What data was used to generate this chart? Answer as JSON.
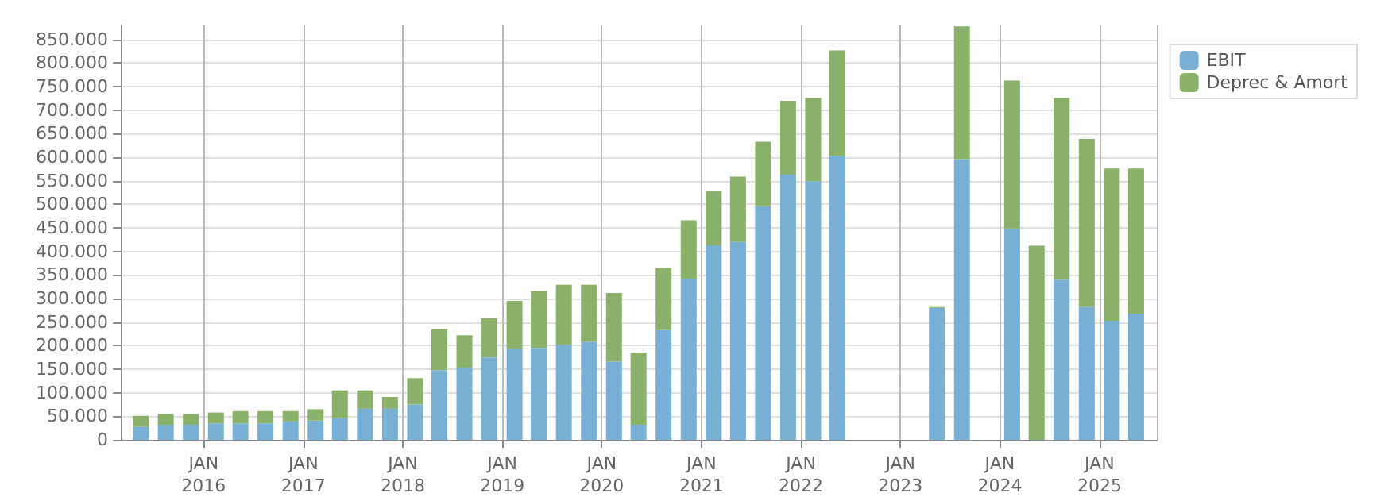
{
  "chart_data": {
    "type": "bar",
    "stacked": true,
    "grid": true,
    "legend": "top right",
    "x": [
      "2015-05-15",
      "2015-08-15",
      "2015-11-15",
      "2016-02-15",
      "2016-05-15",
      "2016-08-15",
      "2016-11-15",
      "2017-02-15",
      "2017-05-15",
      "2017-08-15",
      "2017-11-15",
      "2018-02-15",
      "2018-05-15",
      "2018-08-15",
      "2018-11-15",
      "2019-02-15",
      "2019-05-15",
      "2019-08-15",
      "2019-11-15",
      "2020-02-15",
      "2020-05-15",
      "2020-08-15",
      "2020-11-15",
      "2021-02-15",
      "2021-05-15",
      "2021-08-15",
      "2021-11-15",
      "2022-02-15",
      "2022-05-15",
      "2023-05-15",
      "2023-08-15",
      "2024-02-15",
      "2024-05-15",
      "2024-08-15",
      "2024-11-15",
      "2025-02-15",
      "2025-05-15"
    ],
    "series": [
      {
        "name": "EBIT",
        "color": "#77b0d4",
        "values": [
          28000,
          32000,
          32000,
          35000,
          35000,
          35000,
          39000,
          41000,
          46000,
          66000,
          66000,
          75000,
          148000,
          153000,
          175000,
          193000,
          195000,
          202000,
          208000,
          166000,
          32000,
          233000,
          342000,
          413000,
          420000,
          496000,
          563000,
          549000,
          603000,
          280000,
          596000,
          449000,
          null,
          340000,
          282000,
          253000,
          268000
        ]
      },
      {
        "name": "Deprec & Amort",
        "color": "#8ab06a",
        "values": [
          23000,
          23000,
          23000,
          23000,
          26000,
          26000,
          22000,
          24000,
          59000,
          39000,
          25000,
          56000,
          87000,
          69000,
          83000,
          102000,
          121000,
          127000,
          121000,
          146000,
          153000,
          132000,
          124000,
          116000,
          139000,
          137000,
          157000,
          177000,
          224000,
          2000,
          282000,
          314000,
          412000,
          386000,
          357000,
          323000,
          308000
        ]
      }
    ],
    "xlim": [
      "2015-04-01",
      "2025-07-01"
    ],
    "xticks": [
      {
        "value": "2016-01-01",
        "label": "JAN\n2016"
      },
      {
        "value": "2017-01-01",
        "label": "JAN\n2017"
      },
      {
        "value": "2018-01-01",
        "label": "JAN\n2018"
      },
      {
        "value": "2019-01-01",
        "label": "JAN\n2019"
      },
      {
        "value": "2020-01-01",
        "label": "JAN\n2020"
      },
      {
        "value": "2021-01-01",
        "label": "JAN\n2021"
      },
      {
        "value": "2022-01-01",
        "label": "JAN\n2022"
      },
      {
        "value": "2023-01-01",
        "label": "JAN\n2023"
      },
      {
        "value": "2024-01-01",
        "label": "JAN\n2024"
      },
      {
        "value": "2025-01-01",
        "label": "JAN\n2025"
      }
    ],
    "ylim": [
      0,
      880000
    ],
    "yticks": [
      0,
      {
        "value": 50000,
        "label": "50.000"
      },
      {
        "value": 100000,
        "label": "100.000"
      },
      {
        "value": 150000,
        "label": "150.000"
      },
      {
        "value": 200000,
        "label": "200.000"
      },
      {
        "value": 250000,
        "label": "250.000"
      },
      {
        "value": 300000,
        "label": "300.000"
      },
      {
        "value": 350000,
        "label": "350.000"
      },
      {
        "value": 400000,
        "label": "400.000"
      },
      {
        "value": 450000,
        "label": "450.000"
      },
      {
        "value": 500000,
        "label": "500.000"
      },
      {
        "value": 550000,
        "label": "550.000"
      },
      {
        "value": 600000,
        "label": "600.000"
      },
      {
        "value": 650000,
        "label": "650.000"
      },
      {
        "value": 700000,
        "label": "700.000"
      },
      {
        "value": 750000,
        "label": "750.000"
      },
      {
        "value": 800000,
        "label": "800.000"
      },
      {
        "value": 850000,
        "label": "850.000"
      }
    ]
  }
}
